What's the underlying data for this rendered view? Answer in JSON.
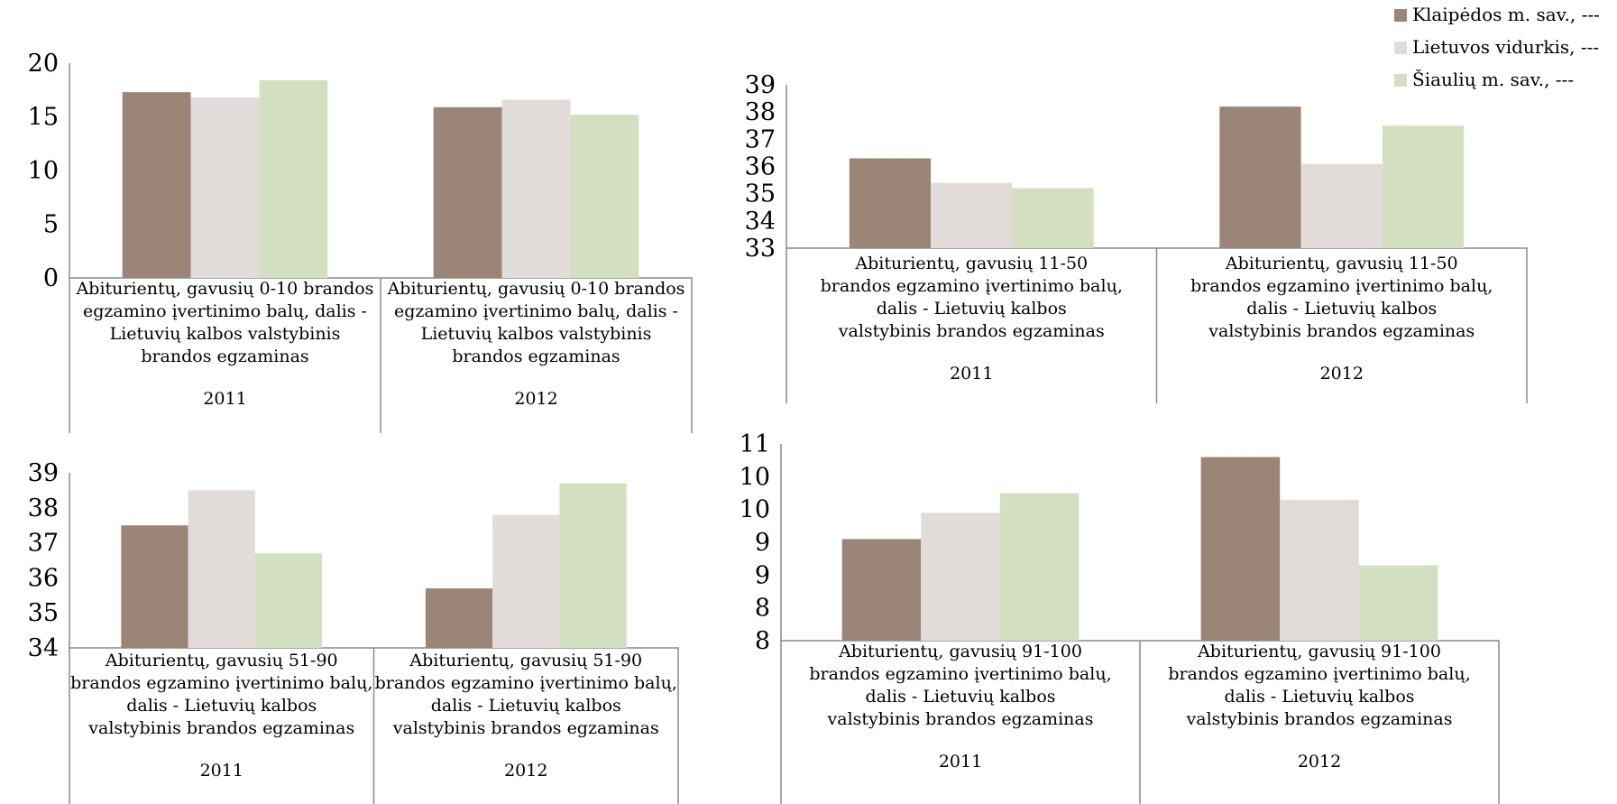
{
  "title": "",
  "legend": {
    "placement": "top-right",
    "items": [
      {
        "label": "Klaipėdos m. sav., ---",
        "color": "#9b8577"
      },
      {
        "label": "Lietuvos vidurkis, ---",
        "color": "#e1dcd9"
      },
      {
        "label": "Šiaulių m. sav., ---",
        "color": "#d3dfc0"
      }
    ]
  },
  "chart_data": [
    {
      "type": "bar",
      "groups": [
        {
          "label": "Abiturientų, gavusių 0-10 brandos egzamino įvertinimo balų, dalis - Lietuvių kalbos valstybinis brandos egzaminas",
          "year": "2011"
        },
        {
          "label": "Abiturientų, gavusių 0-10 brandos egzamino įvertinimo balų, dalis - Lietuvių kalbos valstybinis brandos egzaminas",
          "year": "2012"
        }
      ],
      "series": [
        {
          "name": "Klaipėdos m. sav., ---",
          "values": [
            17.3,
            15.9
          ]
        },
        {
          "name": "Lietuvos vidurkis, ---",
          "values": [
            16.8,
            16.6
          ]
        },
        {
          "name": "Šiaulių m. sav., ---",
          "values": [
            18.4,
            15.2
          ]
        }
      ],
      "ylim": [
        0,
        20
      ],
      "yticks": [
        "0",
        "5",
        "10",
        "15",
        "20"
      ]
    },
    {
      "type": "bar",
      "groups": [
        {
          "label": "Abiturientų, gavusių 11-50 brandos egzamino įvertinimo balų, dalis - Lietuvių kalbos valstybinis brandos egzaminas",
          "year": "2011"
        },
        {
          "label": "Abiturientų, gavusių 11-50 brandos egzamino įvertinimo balų, dalis - Lietuvių kalbos valstybinis brandos egzaminas",
          "year": "2012"
        }
      ],
      "series": [
        {
          "name": "Klaipėdos m. sav., ---",
          "values": [
            36.3,
            38.2
          ]
        },
        {
          "name": "Lietuvos vidurkis, ---",
          "values": [
            35.4,
            36.1
          ]
        },
        {
          "name": "Šiaulių m. sav., ---",
          "values": [
            35.2,
            37.5
          ]
        }
      ],
      "ylim": [
        33,
        39
      ],
      "yticks": [
        "33",
        "34",
        "35",
        "36",
        "37",
        "38",
        "39"
      ]
    },
    {
      "type": "bar",
      "groups": [
        {
          "label": "Abiturientų, gavusių 51-90 brandos egzamino įvertinimo balų, dalis - Lietuvių kalbos valstybinis brandos egzaminas",
          "year": "2011"
        },
        {
          "label": "Abiturientų, gavusių 51-90 brandos egzamino įvertinimo balų, dalis - Lietuvių kalbos valstybinis brandos egzaminas",
          "year": "2012"
        }
      ],
      "series": [
        {
          "name": "Klaipėdos m. sav., ---",
          "values": [
            37.5,
            35.7
          ]
        },
        {
          "name": "Lietuvos vidurkis, ---",
          "values": [
            38.5,
            37.8
          ]
        },
        {
          "name": "Šiaulių m. sav., ---",
          "values": [
            36.7,
            38.7
          ]
        }
      ],
      "ylim": [
        34,
        39
      ],
      "yticks": [
        "34",
        "35",
        "36",
        "37",
        "38",
        "39"
      ]
    },
    {
      "type": "bar",
      "groups": [
        {
          "label": "Abiturientų, gavusių 91-100 brandos egzamino įvertinimo balų, dalis - Lietuvių kalbos valstybinis brandos egzaminas",
          "year": "2011"
        },
        {
          "label": "Abiturientų, gavusių 91-100 brandos egzamino įvertinimo balų, dalis - Lietuvių kalbos valstybinis brandos egzaminas",
          "year": "2012"
        }
      ],
      "series": [
        {
          "name": "Klaipėdos m. sav., ---",
          "values": [
            9.55,
            10.8
          ]
        },
        {
          "name": "Lietuvos vidurkis, ---",
          "values": [
            9.95,
            10.15
          ]
        },
        {
          "name": "Šiaulių m. sav., ---",
          "values": [
            10.25,
            9.15
          ]
        }
      ],
      "ylim": [
        8,
        11
      ],
      "yticks": [
        "8",
        "8",
        "9",
        "9",
        "10",
        "10",
        "11"
      ]
    }
  ]
}
